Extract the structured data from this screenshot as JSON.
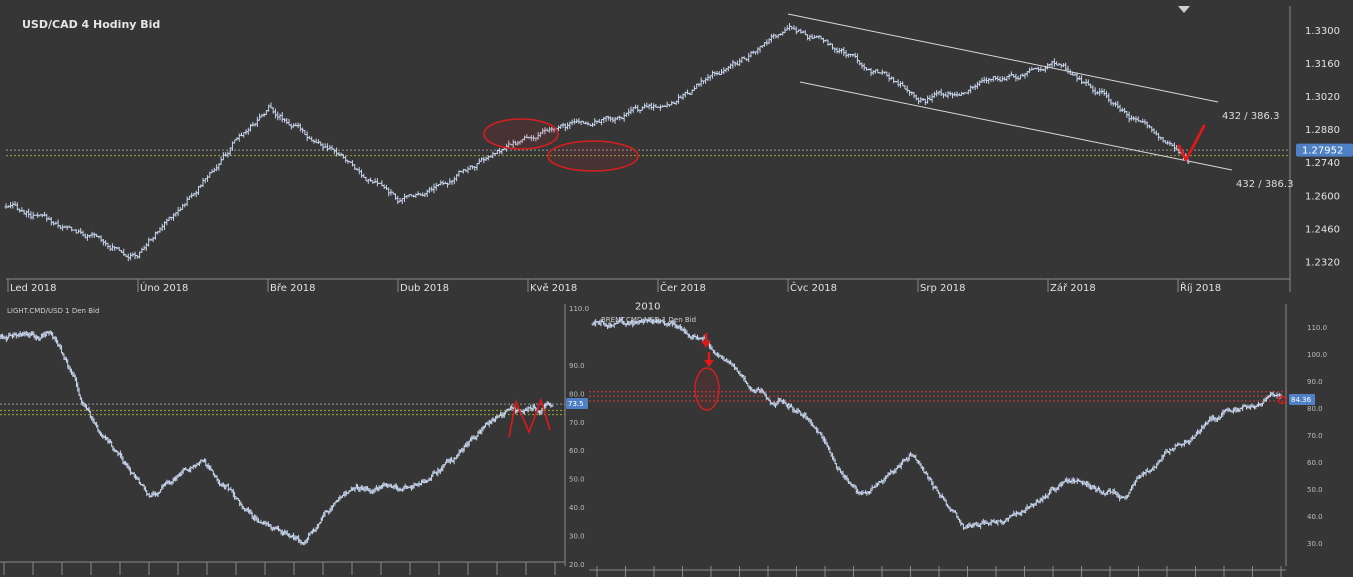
{
  "colors": {
    "background": "#363636",
    "candles": "#c7d6ee",
    "grid": "#8a8a8a",
    "dotted_level": "#9aa63a",
    "annotation_red": "#e01818",
    "price_tag": "#4f80c6",
    "channel_line": "#d9d9d9"
  },
  "chart_data": [
    {
      "id": "usdcad",
      "type": "line",
      "title": "USD/CAD  4 Hodiny Bid",
      "x": [
        "Led 2018",
        "Úno 2018",
        "Bře 2018",
        "Dub 2018",
        "Kvě 2018",
        "Čer 2018",
        "Čvc 2018",
        "Srp 2018",
        "Zář 2018",
        "Říj 2018"
      ],
      "y": [
        1.2555,
        1.2355,
        1.2985,
        1.258,
        1.2845,
        1.2985,
        1.3305,
        1.3025,
        1.3165,
        1.2765
      ],
      "ylim": [
        1.225,
        1.3405
      ],
      "yticks": [
        "1.3300",
        "1.3160",
        "1.3020",
        "1.2880",
        "1.2740",
        "1.2600",
        "1.2460",
        "1.2320"
      ],
      "current_price_label": "1.27952",
      "current_price": 1.2795,
      "horizontal_levels": [
        1.2795,
        1.2772
      ],
      "channel_labels": [
        "432 / 386.3",
        "432 / 386.3"
      ],
      "grid": false,
      "annotations": [
        "red ellipses around the consolidation zones in Kvě 2018",
        "red check mark at the lower channel line in Říj 2018"
      ]
    },
    {
      "id": "light",
      "type": "line",
      "title": "LIGHT.CMD/USD  1 Den Bid",
      "x_labels_legible": false,
      "y": [
        100,
        102,
        64,
        44,
        56,
        37,
        28,
        48,
        45,
        56,
        73,
        76
      ],
      "ylim": [
        20,
        110
      ],
      "yticks": [
        "110.0",
        "90.0",
        "80.0",
        "70.0",
        "60.0",
        "50.0",
        "40.0",
        "30.0",
        "20.0"
      ],
      "current_price_label": "73.5",
      "horizontal_levels": [
        76.2,
        74.0,
        72.5
      ],
      "annotations": [
        "red M shape (double top) at the right edge"
      ]
    },
    {
      "id": "brent",
      "type": "line",
      "title": "BRENT.CMD/USD  1 Den Bid",
      "top_label": "2010",
      "x_labels_legible": false,
      "y": [
        111,
        112,
        108,
        88,
        78,
        48,
        62,
        36,
        40,
        54,
        48,
        65,
        79,
        85
      ],
      "ylim": [
        20,
        120
      ],
      "yticks": [
        "110.0",
        "100.0",
        "90.0",
        "80.0",
        "70.0",
        "60.0",
        "50.0",
        "40.0",
        "30.0"
      ],
      "current_price_label": "84.36",
      "horizontal_levels": [
        86.0,
        84.4,
        82.6
      ],
      "annotations": [
        "two red down arrows and a red ellipse on the 2014 sell-off",
        "small red circle at the latest price"
      ]
    }
  ]
}
